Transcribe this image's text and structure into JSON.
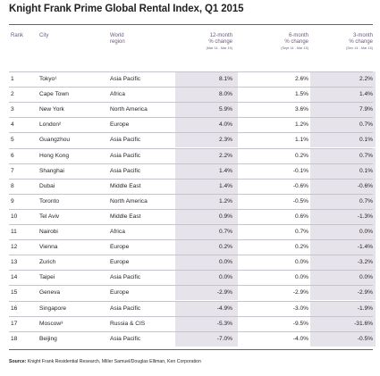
{
  "title": "Knight Frank Prime Global Rental Index, Q1 2015",
  "headers": {
    "rank": "Rank",
    "city": "City",
    "region_line1": "World",
    "region_line2": "region",
    "m12_line1": "12-month",
    "m12_line2": "% change",
    "m12_range": "(Mar 14 - Mar 15)",
    "m6_line1": "6-month",
    "m6_line2": "% change",
    "m6_range": "(Sept 14 - Mar 15)",
    "m3_line1": "3-month",
    "m3_line2": "% change",
    "m3_range": "(Dec 14 - Mar 15)"
  },
  "rows": [
    {
      "rank": "1",
      "city": "Tokyo¹",
      "region": "Asia Pacific",
      "m12": "8.1%",
      "m6": "2.6%",
      "m3": "2.2%"
    },
    {
      "rank": "2",
      "city": "Cape Town",
      "region": "Africa",
      "m12": "8.0%",
      "m6": "1.5%",
      "m3": "1.4%"
    },
    {
      "rank": "3",
      "city": "New York",
      "region": "North America",
      "m12": "5.9%",
      "m6": "3.6%",
      "m3": "7.9%"
    },
    {
      "rank": "4",
      "city": "London²",
      "region": "Europe",
      "m12": "4.0%",
      "m6": "1.2%",
      "m3": "0.7%"
    },
    {
      "rank": "5",
      "city": "Guangzhou",
      "region": "Asia Pacific",
      "m12": "2.3%",
      "m6": "1.1%",
      "m3": "0.1%"
    },
    {
      "rank": "6",
      "city": "Hong Kong",
      "region": "Asia Pacific",
      "m12": "2.2%",
      "m6": "0.2%",
      "m3": "0.7%"
    },
    {
      "rank": "7",
      "city": "Shanghai",
      "region": "Asia Pacific",
      "m12": "1.4%",
      "m6": "-0.1%",
      "m3": "0.1%"
    },
    {
      "rank": "8",
      "city": "Dubai",
      "region": "Middle East",
      "m12": "1.4%",
      "m6": "-0.6%",
      "m3": "-0.6%"
    },
    {
      "rank": "9",
      "city": "Toronto",
      "region": "North America",
      "m12": "1.2%",
      "m6": "-0.5%",
      "m3": "0.7%"
    },
    {
      "rank": "10",
      "city": "Tel Aviv",
      "region": "Middle East",
      "m12": "0.9%",
      "m6": "0.6%",
      "m3": "-1.3%"
    },
    {
      "rank": "11",
      "city": "Nairobi",
      "region": "Africa",
      "m12": "0.7%",
      "m6": "0.7%",
      "m3": "0.0%"
    },
    {
      "rank": "12",
      "city": "Vienna",
      "region": "Europe",
      "m12": "0.2%",
      "m6": "0.2%",
      "m3": "-1.4%"
    },
    {
      "rank": "13",
      "city": "Zurich",
      "region": "Europe",
      "m12": "0.0%",
      "m6": "0.0%",
      "m3": "-3.2%"
    },
    {
      "rank": "14",
      "city": "Taipei",
      "region": "Asia Pacific",
      "m12": "0.0%",
      "m6": "0.0%",
      "m3": "0.0%"
    },
    {
      "rank": "15",
      "city": "Geneva",
      "region": "Europe",
      "m12": "-2.9%",
      "m6": "-2.9%",
      "m3": "-2.9%"
    },
    {
      "rank": "16",
      "city": "Singapore",
      "region": "Asia Pacific",
      "m12": "-4.9%",
      "m6": "-3.0%",
      "m3": "-1.9%"
    },
    {
      "rank": "17",
      "city": "Moscow³",
      "region": "Russia & CIS",
      "m12": "-5.3%",
      "m6": "-9.5%",
      "m3": "-31.6%"
    },
    {
      "rank": "18",
      "city": "Beijing",
      "region": "Asia Pacific",
      "m12": "-7.0%",
      "m6": "-4.0%",
      "m3": "-0.5%"
    }
  ],
  "source_label": "Source:",
  "source_text": "Knight Frank Residential Research, Miller Samuel/Douglas Elliman, Ken Corporation",
  "colors": {
    "accent": "#6e5a7e",
    "shade": "#e7e3ea",
    "rule": "#c8c2cc"
  }
}
